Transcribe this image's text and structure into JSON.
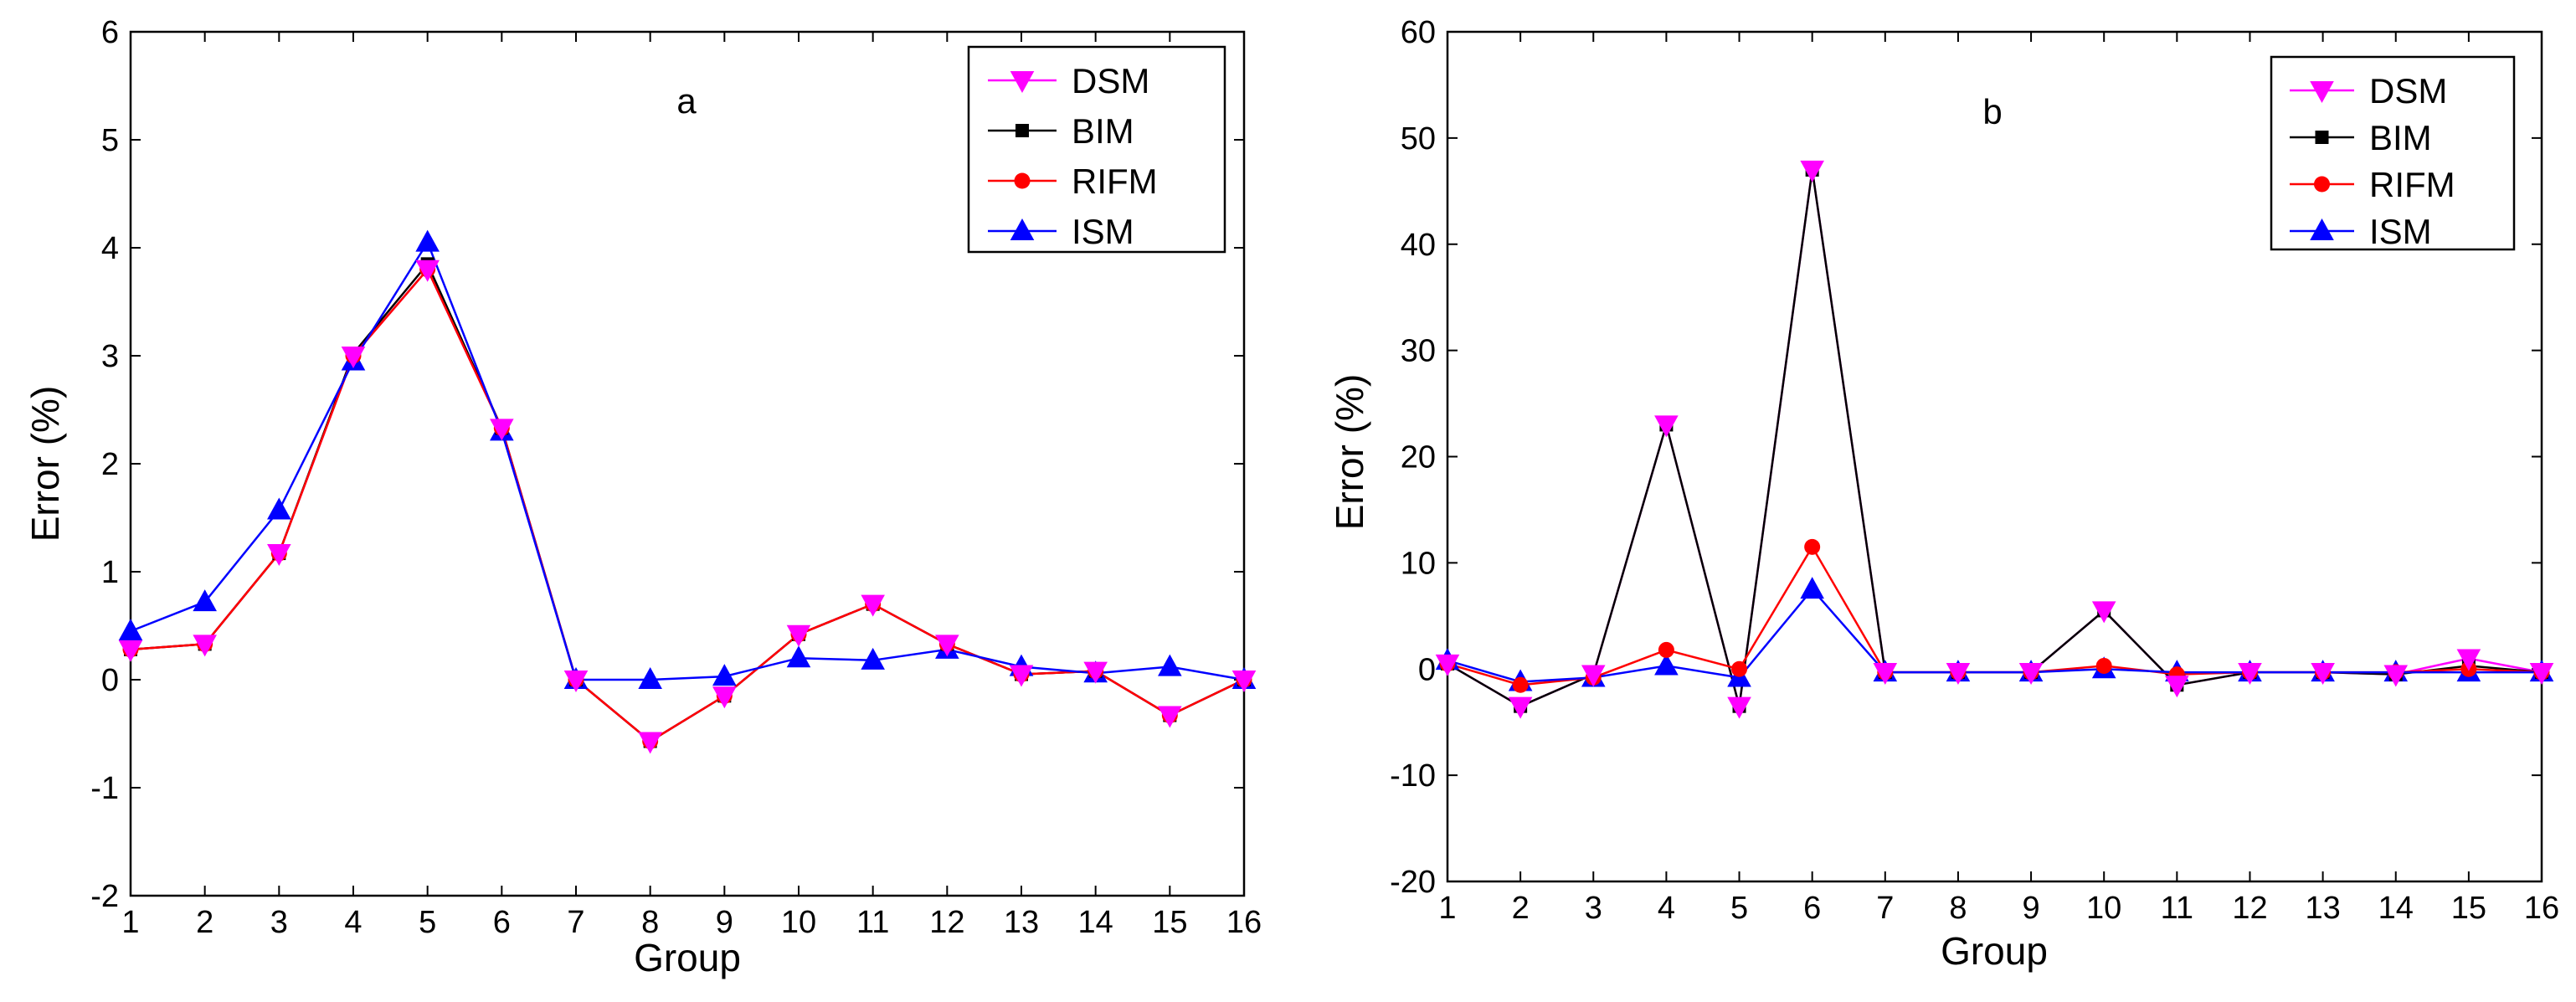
{
  "chart_data": [
    {
      "type": "line",
      "panel_label": "a",
      "xlabel": "Group",
      "ylabel": "Error (%)",
      "xlim": [
        1,
        16
      ],
      "ylim": [
        -2,
        6
      ],
      "xticks": [
        "1",
        "2",
        "3",
        "4",
        "5",
        "6",
        "7",
        "8",
        "9",
        "10",
        "11",
        "12",
        "13",
        "14",
        "15",
        "16"
      ],
      "yticks": [
        "-2",
        "-1",
        "0",
        "1",
        "2",
        "3",
        "4",
        "5",
        "6"
      ],
      "legend": "top-right",
      "x": [
        1,
        2,
        3,
        4,
        5,
        6,
        7,
        8,
        9,
        10,
        11,
        12,
        13,
        14,
        15,
        16
      ],
      "series": [
        {
          "name": "DSM",
          "color": "#ff00ff",
          "marker": "triangle-down",
          "values": [
            0.28,
            0.33,
            1.17,
            3.0,
            3.8,
            2.33,
            0.0,
            -0.57,
            -0.15,
            0.42,
            0.7,
            0.33,
            0.05,
            0.08,
            -0.33,
            0.0
          ]
        },
        {
          "name": "BIM",
          "color": "#000000",
          "marker": "square",
          "values": [
            0.28,
            0.33,
            1.17,
            3.02,
            3.85,
            2.33,
            0.0,
            -0.57,
            -0.15,
            0.42,
            0.7,
            0.33,
            0.05,
            0.08,
            -0.33,
            0.0
          ]
        },
        {
          "name": "RIFM",
          "color": "#ff0000",
          "marker": "circle",
          "values": [
            0.28,
            0.33,
            1.17,
            3.0,
            3.8,
            2.33,
            0.0,
            -0.57,
            -0.15,
            0.42,
            0.7,
            0.33,
            0.05,
            0.08,
            -0.33,
            0.0
          ]
        },
        {
          "name": "ISM",
          "color": "#0000ff",
          "marker": "triangle-up",
          "values": [
            0.45,
            0.72,
            1.57,
            2.95,
            4.05,
            2.3,
            0.0,
            0.0,
            0.03,
            0.2,
            0.18,
            0.28,
            0.12,
            0.06,
            0.12,
            0.0
          ]
        }
      ]
    },
    {
      "type": "line",
      "panel_label": "b",
      "xlabel": "Group",
      "ylabel": "Error (%)",
      "xlim": [
        1,
        16
      ],
      "ylim": [
        -20,
        60
      ],
      "xticks": [
        "1",
        "2",
        "3",
        "4",
        "5",
        "6",
        "7",
        "8",
        "9",
        "10",
        "11",
        "12",
        "13",
        "14",
        "15",
        "16"
      ],
      "yticks": [
        "-20",
        "-10",
        "0",
        "10",
        "20",
        "30",
        "40",
        "50",
        "60"
      ],
      "legend": "top-right",
      "x": [
        1,
        2,
        3,
        4,
        5,
        6,
        7,
        8,
        9,
        10,
        11,
        12,
        13,
        14,
        15,
        16
      ],
      "series": [
        {
          "name": "DSM",
          "color": "#ff00ff",
          "marker": "triangle-down",
          "values": [
            0.5,
            -3.5,
            -0.5,
            23.0,
            -3.5,
            47.0,
            -0.3,
            -0.3,
            -0.3,
            5.5,
            -1.5,
            -0.3,
            -0.3,
            -0.5,
            1.0,
            -0.3
          ]
        },
        {
          "name": "BIM",
          "color": "#000000",
          "marker": "square",
          "values": [
            0.5,
            -3.5,
            -0.5,
            23.0,
            -3.5,
            47.0,
            -0.3,
            -0.3,
            -0.3,
            5.5,
            -1.5,
            -0.3,
            -0.3,
            -0.5,
            0.3,
            -0.3
          ]
        },
        {
          "name": "RIFM",
          "color": "#ff0000",
          "marker": "circle",
          "values": [
            0.5,
            -1.5,
            -0.8,
            1.8,
            0.0,
            11.5,
            -0.3,
            -0.3,
            -0.3,
            0.3,
            -0.5,
            -0.3,
            -0.3,
            -0.3,
            0.0,
            -0.3
          ]
        },
        {
          "name": "ISM",
          "color": "#0000ff",
          "marker": "triangle-up",
          "values": [
            0.8,
            -1.2,
            -0.8,
            0.3,
            -0.8,
            7.5,
            -0.3,
            -0.3,
            -0.3,
            0.0,
            -0.3,
            -0.3,
            -0.3,
            -0.3,
            -0.3,
            -0.3
          ]
        }
      ]
    }
  ]
}
